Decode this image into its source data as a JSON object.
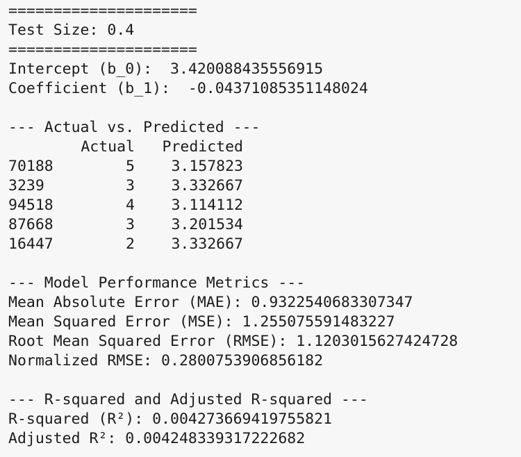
{
  "rule": "=====================",
  "test_size_line": "Test Size: 0.4",
  "intercept_line": "Intercept (b_0):  3.420088435556915",
  "coefficient_line": "Coefficient (b_1):  -0.04371085351148024",
  "comparison_header": "--- Actual vs. Predicted ---",
  "table": {
    "columns": [
      "Actual",
      "Predicted"
    ],
    "rows": [
      {
        "index": "70188",
        "actual": "5",
        "predicted": "3.157823"
      },
      {
        "index": "3239",
        "actual": "3",
        "predicted": "3.332667"
      },
      {
        "index": "94518",
        "actual": "4",
        "predicted": "3.114112"
      },
      {
        "index": "87668",
        "actual": "3",
        "predicted": "3.201534"
      },
      {
        "index": "16447",
        "actual": "2",
        "predicted": "3.332667"
      }
    ]
  },
  "metrics_header": "--- Model Performance Metrics ---",
  "mae_line": "Mean Absolute Error (MAE): 0.9322540683307347",
  "mse_line": "Mean Squared Error (MSE): 1.255075591483227",
  "rmse_line": "Root Mean Squared Error (RMSE): 1.1203015627424728",
  "nrmse_line": "Normalized RMSE: 0.2800753906856182",
  "r2_header": "--- R-squared and Adjusted R-squared ---",
  "r2_line": "R-squared (R²): 0.004273669419755821",
  "adj_r2_line": "Adjusted R²: 0.004248339317222682"
}
